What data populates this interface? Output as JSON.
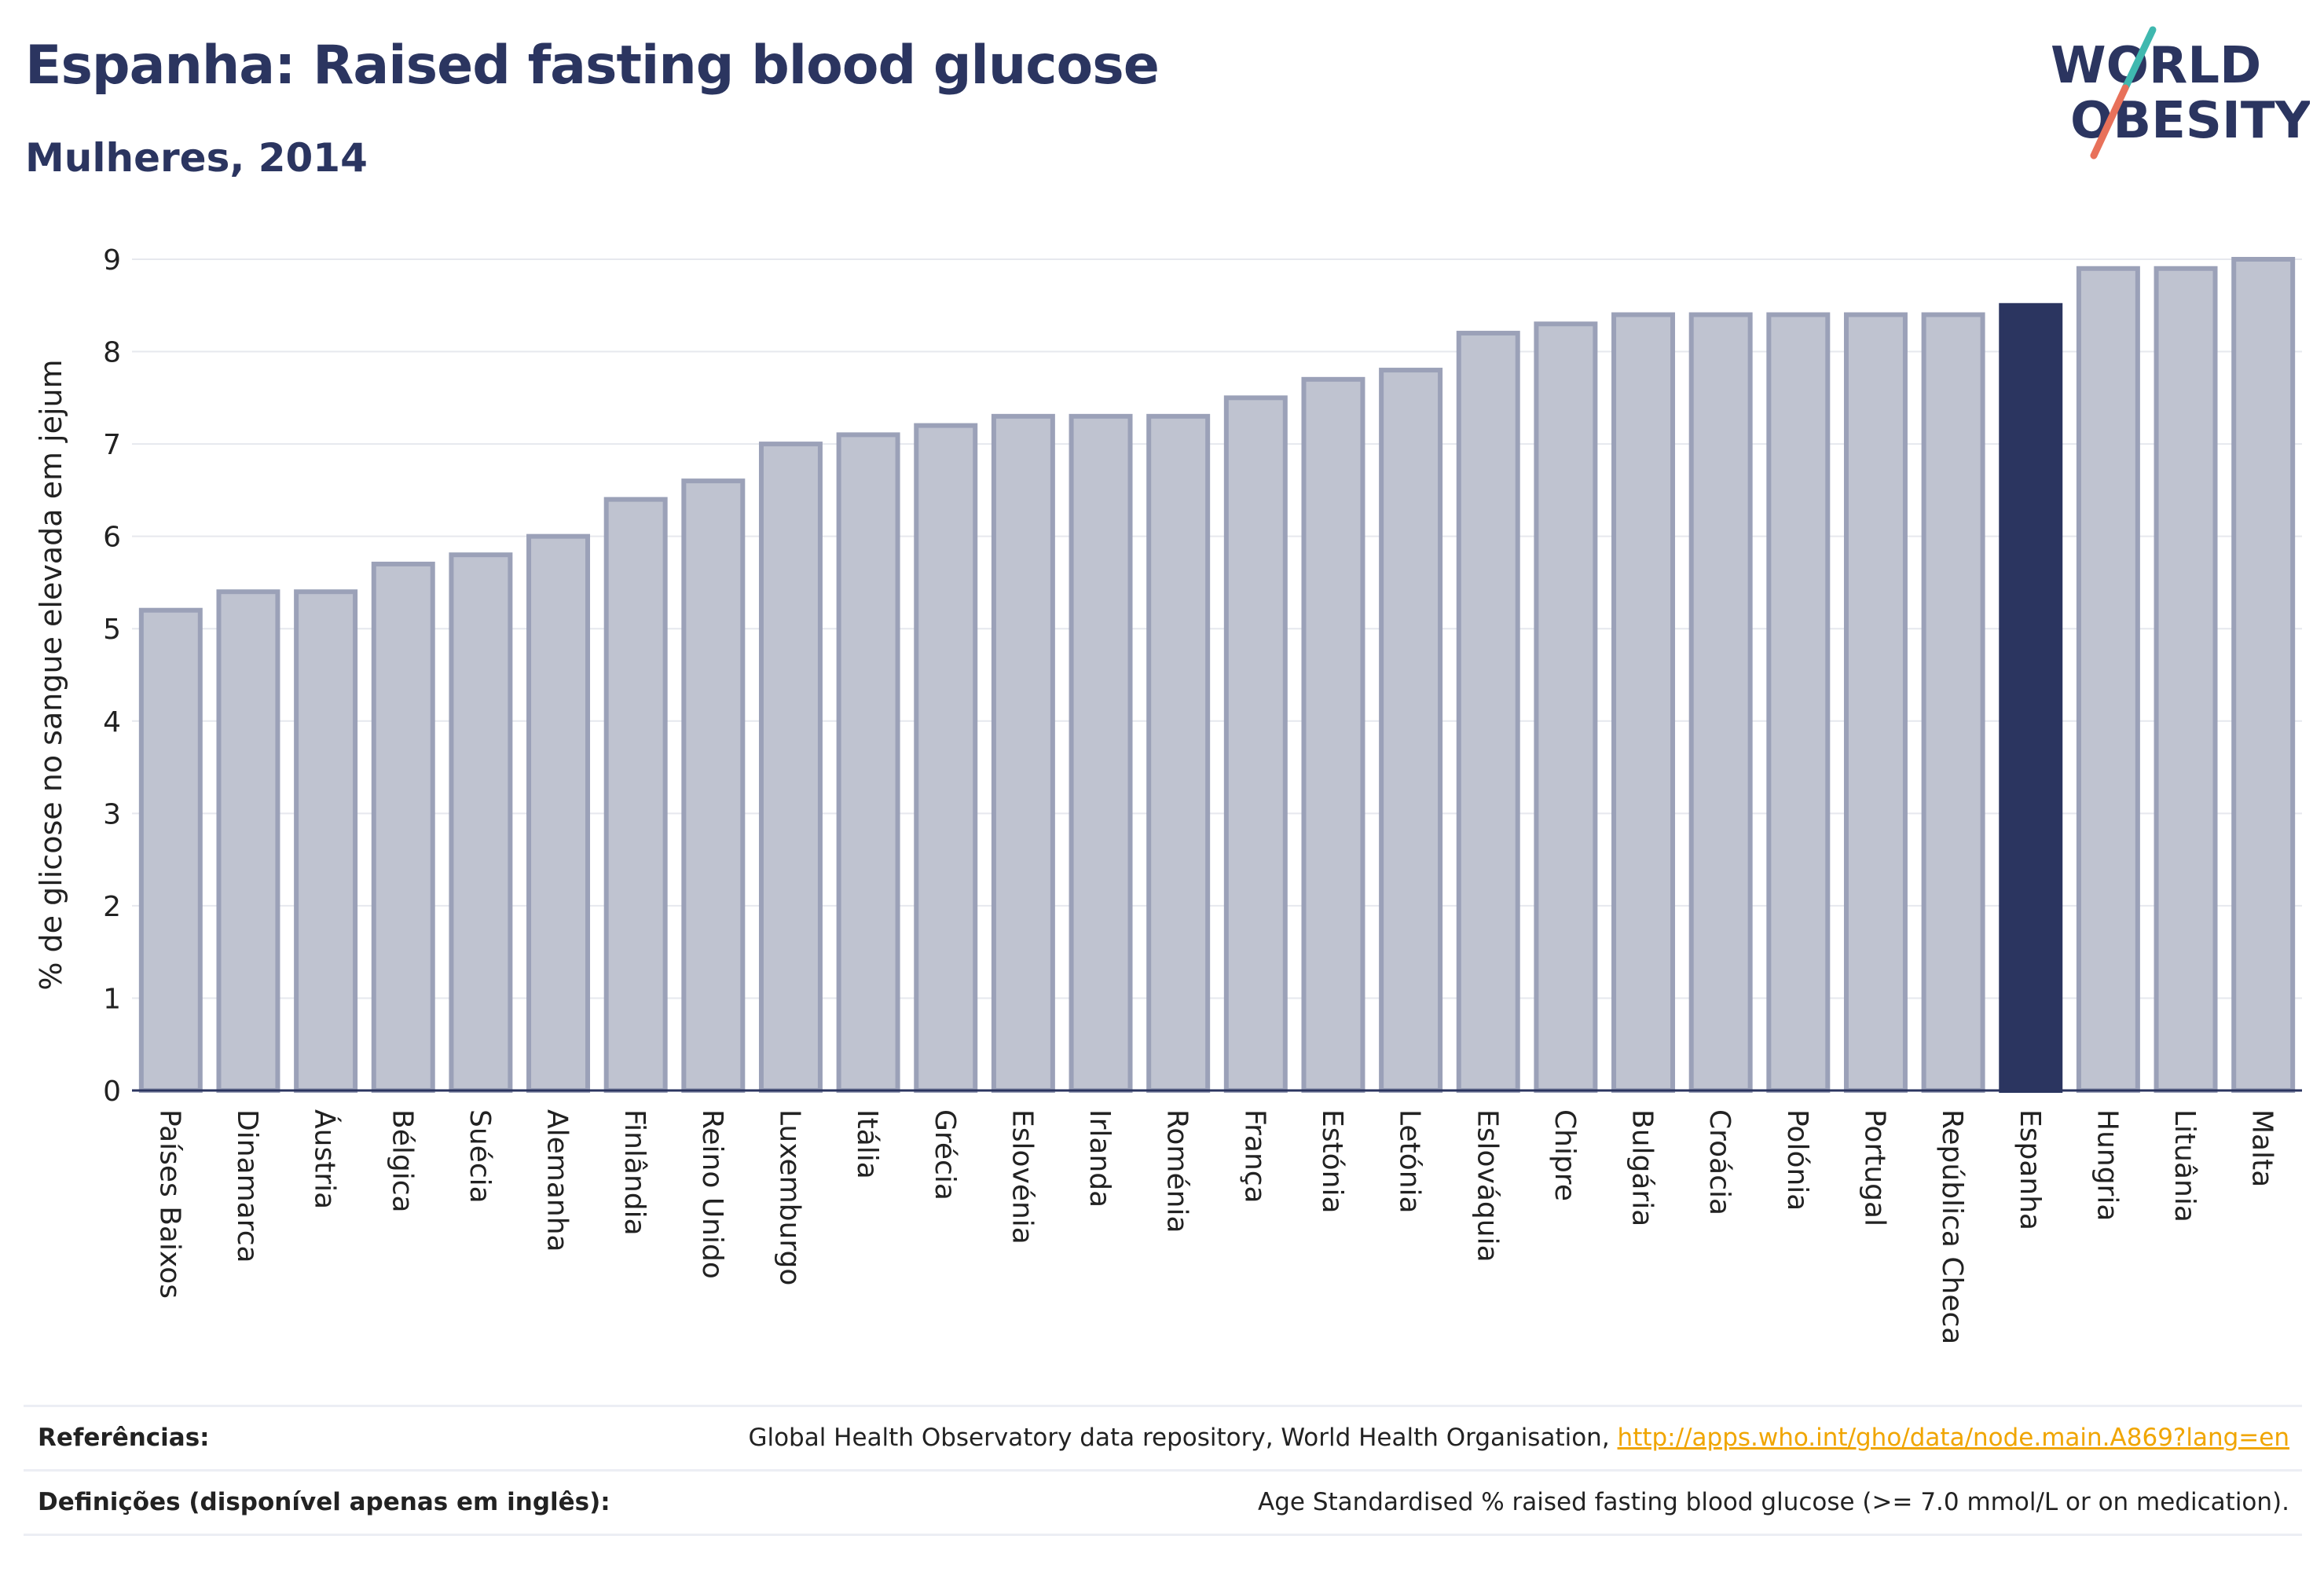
{
  "header": {
    "title": "Espanha: Raised fasting blood glucose",
    "subtitle": "Mulheres, 2014"
  },
  "logo": {
    "line1": "WORLD",
    "line2": "OBESITY"
  },
  "footer": {
    "references_label": "Referências:",
    "references_text": "Global Health Observatory data repository, World Health Organisation, ",
    "references_link": "http://apps.who.int/gho/data/node.main.A869?lang=en",
    "definitions_label": "Definições (disponível apenas em inglês):",
    "definitions_text": "Age Standardised % raised fasting blood glucose (>= 7.0 mmol/L or on medication)."
  },
  "colors": {
    "bar_fill": "#bfc3d0",
    "bar_stroke": "#9ba1b8",
    "highlight": "#2b3560",
    "grid": "#e6e8ee",
    "logo_slash_top": "#3fb8af",
    "logo_slash_bottom": "#e8715a"
  },
  "chart_data": {
    "type": "bar",
    "ylabel": "% de glicose no sangue elevada em jejum",
    "ylim": [
      0,
      9
    ],
    "yticks": [
      0,
      1,
      2,
      3,
      4,
      5,
      6,
      7,
      8,
      9
    ],
    "highlight": "Espanha",
    "grid": true,
    "categories": [
      "Países Baixos",
      "Dinamarca",
      "Áustria",
      "Bélgica",
      "Suécia",
      "Alemanha",
      "Finlândia",
      "Reino Unido",
      "Luxemburgo",
      "Itália",
      "Grécia",
      "Eslovénia",
      "Irlanda",
      "Roménia",
      "França",
      "Estónia",
      "Letónia",
      "Eslováquia",
      "Chipre",
      "Bulgária",
      "Croácia",
      "Polónia",
      "Portugal",
      "República Checa",
      "Espanha",
      "Hungria",
      "Lituânia",
      "Malta"
    ],
    "values": [
      5.2,
      5.4,
      5.4,
      5.7,
      5.8,
      6.0,
      6.4,
      6.6,
      7.0,
      7.1,
      7.2,
      7.3,
      7.3,
      7.3,
      7.5,
      7.7,
      7.8,
      8.2,
      8.3,
      8.4,
      8.4,
      8.4,
      8.4,
      8.4,
      8.5,
      8.9,
      8.9,
      9.0
    ]
  }
}
